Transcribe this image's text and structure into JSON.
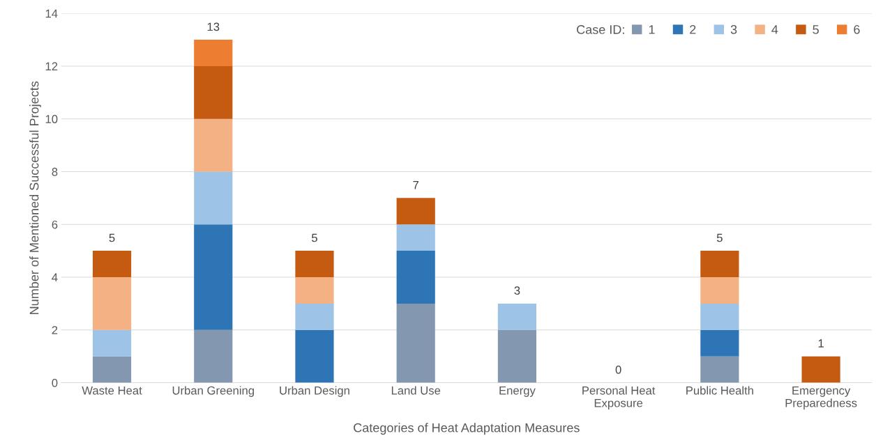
{
  "chart_data": {
    "type": "bar",
    "stacked": true,
    "xlabel": "Categories of Heat Adaptation Measures",
    "ylabel": "Number of Mentioned Successful Projects",
    "categories": [
      "Waste Heat",
      "Urban Greening",
      "Urban Design",
      "Land Use",
      "Energy",
      "Personal Heat\nExposure",
      "Public Health",
      "Emergency\nPreparedness"
    ],
    "series": [
      {
        "name": "1",
        "color": "#8497b0",
        "values": [
          1,
          2,
          0,
          3,
          2,
          0,
          1,
          0
        ]
      },
      {
        "name": "2",
        "color": "#2e75b6",
        "values": [
          0,
          4,
          2,
          2,
          0,
          0,
          1,
          0
        ]
      },
      {
        "name": "3",
        "color": "#9dc3e6",
        "values": [
          1,
          2,
          1,
          1,
          1,
          0,
          1,
          0
        ]
      },
      {
        "name": "4",
        "color": "#f4b183",
        "values": [
          2,
          2,
          1,
          0,
          0,
          0,
          1,
          0
        ]
      },
      {
        "name": "5",
        "color": "#c55a11",
        "values": [
          1,
          2,
          1,
          1,
          0,
          0,
          1,
          1
        ]
      },
      {
        "name": "6",
        "color": "#ed7d31",
        "values": [
          0,
          1,
          0,
          0,
          0,
          0,
          0,
          0
        ]
      }
    ],
    "totals": [
      "5",
      "13",
      "5",
      "7",
      "3",
      "0",
      "5",
      "1"
    ],
    "legend_title": "Case ID:",
    "legend": "top right",
    "ylim": [
      0,
      14
    ],
    "yticks": [
      0,
      2,
      4,
      6,
      8,
      10,
      12,
      14
    ],
    "grid": "y"
  }
}
